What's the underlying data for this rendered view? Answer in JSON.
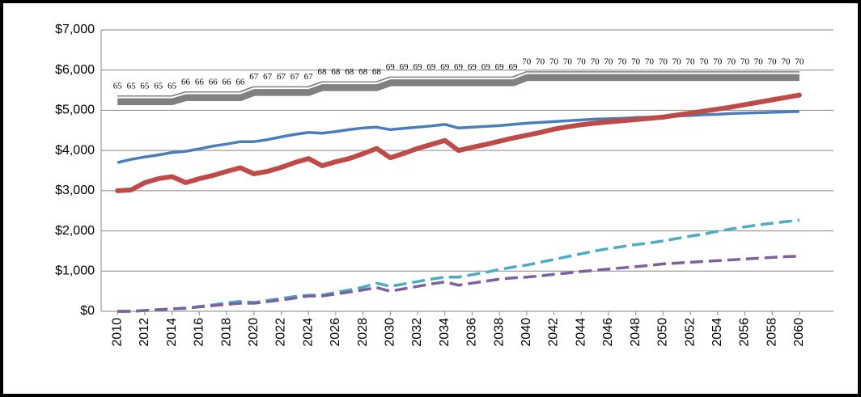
{
  "chart_data": {
    "type": "line",
    "x": [
      2010,
      2011,
      2012,
      2013,
      2014,
      2015,
      2016,
      2017,
      2018,
      2019,
      2020,
      2021,
      2022,
      2023,
      2024,
      2025,
      2026,
      2027,
      2028,
      2029,
      2030,
      2031,
      2032,
      2033,
      2034,
      2035,
      2036,
      2037,
      2038,
      2039,
      2040,
      2041,
      2042,
      2043,
      2044,
      2045,
      2046,
      2047,
      2048,
      2049,
      2050,
      2051,
      2052,
      2053,
      2054,
      2055,
      2056,
      2057,
      2058,
      2059,
      2060
    ],
    "xlim": [
      2008.8,
      2062.5
    ],
    "xticks": [
      2010,
      2012,
      2014,
      2016,
      2018,
      2020,
      2022,
      2024,
      2026,
      2028,
      2030,
      2032,
      2034,
      2036,
      2038,
      2040,
      2042,
      2044,
      2046,
      2048,
      2050,
      2052,
      2054,
      2056,
      2058,
      2060
    ],
    "ylim": [
      0,
      7000
    ],
    "yticks": [
      {
        "value": 0,
        "label": "$0"
      },
      {
        "value": 1000,
        "label": "$1,000"
      },
      {
        "value": 2000,
        "label": "$2,000"
      },
      {
        "value": 3000,
        "label": "$3,000"
      },
      {
        "value": 4000,
        "label": "$4,000"
      },
      {
        "value": 5000,
        "label": "$5,000"
      },
      {
        "value": 6000,
        "label": "$6,000"
      },
      {
        "value": 7000,
        "label": "$7,000"
      }
    ],
    "grid": true,
    "series": [
      {
        "color": "#808080",
        "style": "double",
        "values": [
          5250,
          5250,
          5250,
          5250,
          5250,
          5350,
          5350,
          5350,
          5350,
          5350,
          5480,
          5480,
          5480,
          5480,
          5480,
          5600,
          5600,
          5600,
          5600,
          5600,
          5720,
          5720,
          5720,
          5720,
          5720,
          5720,
          5720,
          5720,
          5720,
          5720,
          5850,
          5850,
          5850,
          5850,
          5850,
          5850,
          5850,
          5850,
          5850,
          5850,
          5850,
          5850,
          5850,
          5850,
          5850,
          5850,
          5850,
          5850,
          5850,
          5850,
          5850
        ],
        "point_labels": [
          "65",
          "65",
          "65",
          "65",
          "65",
          "66",
          "66",
          "66",
          "66",
          "66",
          "67",
          "67",
          "67",
          "67",
          "67",
          "68",
          "68",
          "68",
          "68",
          "68",
          "69",
          "69",
          "69",
          "69",
          "69",
          "69",
          "69",
          "69",
          "69",
          "69",
          "70",
          "70",
          "70",
          "70",
          "70",
          "70",
          "70",
          "70",
          "70",
          "70",
          "70",
          "70",
          "70",
          "70",
          "70",
          "70",
          "70",
          "70",
          "70",
          "70",
          "70"
        ]
      },
      {
        "color": "#4a7ebb",
        "style": "solid",
        "values": [
          3700,
          3780,
          3840,
          3890,
          3950,
          3980,
          4040,
          4110,
          4160,
          4220,
          4220,
          4270,
          4340,
          4400,
          4450,
          4430,
          4470,
          4520,
          4560,
          4580,
          4520,
          4550,
          4580,
          4610,
          4650,
          4560,
          4580,
          4600,
          4620,
          4650,
          4680,
          4700,
          4720,
          4740,
          4760,
          4780,
          4790,
          4800,
          4820,
          4830,
          4850,
          4860,
          4870,
          4890,
          4900,
          4920,
          4930,
          4940,
          4950,
          4960,
          4970
        ]
      },
      {
        "color": "#be4b48",
        "style": "bold",
        "values": [
          3000,
          3020,
          3200,
          3300,
          3350,
          3200,
          3300,
          3380,
          3480,
          3570,
          3420,
          3480,
          3580,
          3700,
          3800,
          3620,
          3720,
          3800,
          3920,
          4050,
          3820,
          3930,
          4050,
          4150,
          4250,
          4000,
          4080,
          4150,
          4230,
          4310,
          4380,
          4450,
          4530,
          4590,
          4640,
          4680,
          4710,
          4740,
          4770,
          4800,
          4830,
          4880,
          4930,
          4980,
          5030,
          5080,
          5140,
          5200,
          5260,
          5320,
          5380
        ]
      },
      {
        "color": "#4bacc6",
        "style": "dashed",
        "values": [
          0,
          0,
          20,
          40,
          60,
          70,
          120,
          160,
          210,
          250,
          220,
          270,
          320,
          370,
          400,
          400,
          470,
          530,
          600,
          700,
          620,
          680,
          740,
          800,
          850,
          850,
          910,
          970,
          1040,
          1100,
          1150,
          1220,
          1290,
          1360,
          1430,
          1500,
          1560,
          1610,
          1660,
          1700,
          1750,
          1810,
          1870,
          1920,
          1990,
          2050,
          2100,
          2150,
          2190,
          2230,
          2270
        ]
      },
      {
        "color": "#7d60a0",
        "style": "dashed",
        "values": [
          0,
          0,
          20,
          40,
          60,
          80,
          110,
          140,
          170,
          200,
          200,
          240,
          280,
          330,
          380,
          380,
          430,
          480,
          530,
          590,
          500,
          560,
          620,
          680,
          730,
          650,
          700,
          750,
          800,
          830,
          850,
          880,
          920,
          950,
          990,
          1020,
          1050,
          1080,
          1110,
          1140,
          1180,
          1200,
          1220,
          1240,
          1260,
          1280,
          1300,
          1320,
          1340,
          1360,
          1370
        ]
      }
    ]
  }
}
